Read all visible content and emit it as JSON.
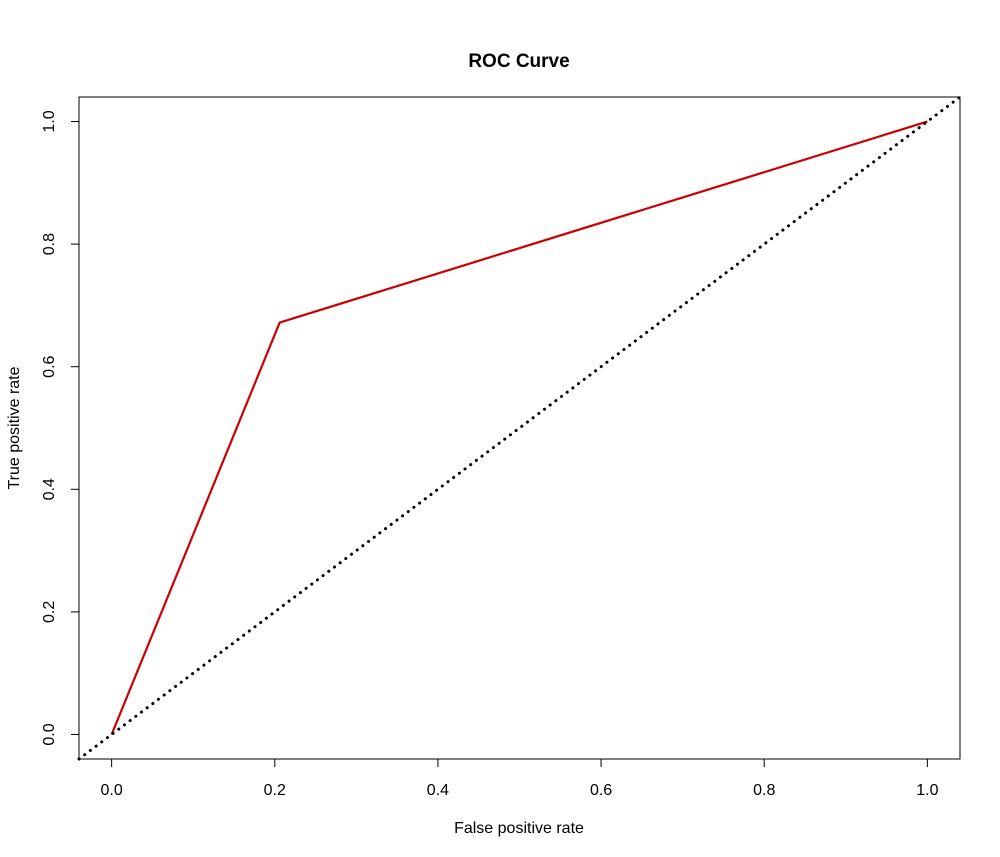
{
  "chart_data": {
    "type": "line",
    "title": "ROC Curve",
    "xlabel": "False positive rate",
    "ylabel": "True positive rate",
    "xlim": [
      -0.04,
      1.04
    ],
    "ylim": [
      -0.04,
      1.04
    ],
    "x_ticks": [
      "0.0",
      "0.2",
      "0.4",
      "0.6",
      "0.8",
      "1.0"
    ],
    "y_ticks": [
      "0.0",
      "0.2",
      "0.4",
      "0.6",
      "0.8",
      "1.0"
    ],
    "grid": false,
    "series": [
      {
        "color": "#cc0000",
        "style": "solid",
        "x": [
          0.0,
          0.206,
          1.0
        ],
        "y": [
          0.0,
          0.672,
          1.0
        ]
      },
      {
        "color": "#000000",
        "style": "dotted",
        "x": [
          -0.04,
          1.04
        ],
        "y": [
          -0.04,
          1.04
        ]
      }
    ]
  }
}
